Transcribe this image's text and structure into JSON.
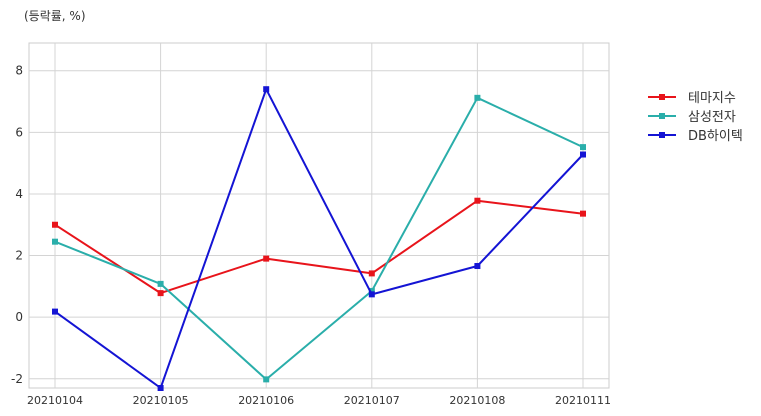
{
  "unit_label": "(등락률, %)",
  "chart_data": {
    "type": "line",
    "title": "",
    "xlabel": "",
    "ylabel": "",
    "x": [
      "20210104",
      "20210105",
      "20210106",
      "20210107",
      "20210108",
      "20210111"
    ],
    "ylim": [
      -2.3,
      8.9
    ],
    "yticks": [
      -2,
      0,
      2,
      4,
      6,
      8
    ],
    "grid": true,
    "legend_position": "right",
    "series": [
      {
        "name": "테마지수",
        "color": "#e8141b",
        "values": [
          3.0,
          0.78,
          1.9,
          1.42,
          3.78,
          3.36
        ]
      },
      {
        "name": "삼성전자",
        "color": "#2aaeaa",
        "values": [
          2.45,
          1.08,
          -2.02,
          0.85,
          7.12,
          5.52
        ]
      },
      {
        "name": "DB하이텍",
        "color": "#1414d4",
        "values": [
          0.18,
          -2.3,
          7.4,
          0.74,
          1.66,
          5.28
        ]
      }
    ]
  }
}
